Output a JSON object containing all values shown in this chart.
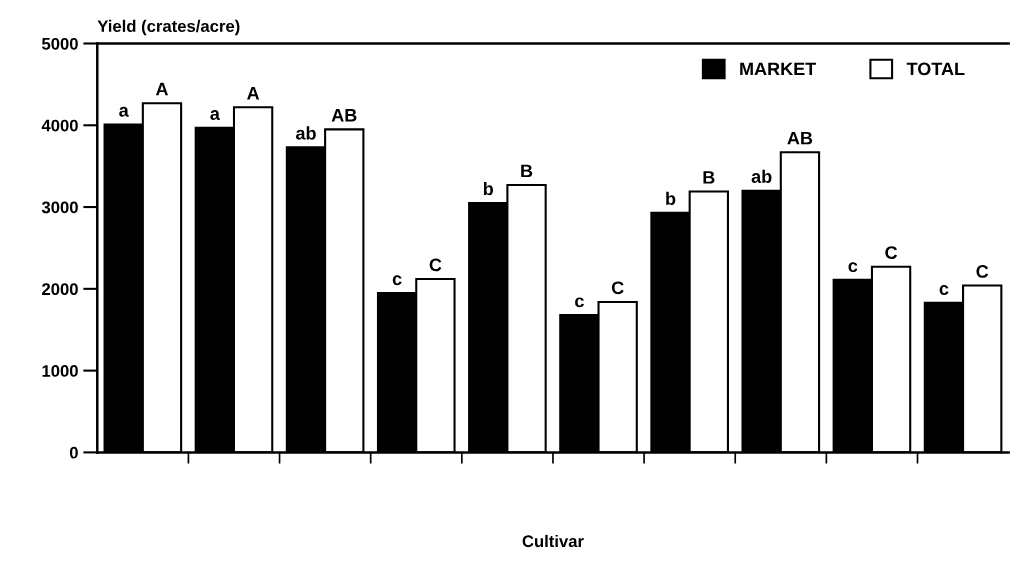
{
  "chart_data": {
    "type": "bar",
    "ylabel": "Yield (crates/acre)",
    "xlabel": "Cultivar",
    "categories": [
      null,
      null,
      null,
      null,
      null,
      null,
      null,
      null,
      null,
      null
    ],
    "series": [
      {
        "name": "MARKET",
        "color": "#000000",
        "values": [
          4010,
          3970,
          3730,
          1950,
          3050,
          1680,
          2930,
          3200,
          2110,
          1830
        ],
        "value_labels": [
          "a",
          "a",
          "ab",
          "c",
          "b",
          "c",
          "b",
          "ab",
          "c",
          "c"
        ]
      },
      {
        "name": "TOTAL",
        "color": "#ffffff",
        "values": [
          4270,
          4220,
          3950,
          2120,
          3270,
          1840,
          3190,
          3670,
          2270,
          2040
        ],
        "value_labels": [
          "A",
          "A",
          "AB",
          "C",
          "B",
          "C",
          "B",
          "AB",
          "C",
          "C"
        ]
      }
    ],
    "ylim": [
      0,
      5000
    ],
    "yticks": [
      0,
      1000,
      2000,
      3000,
      4000,
      5000
    ],
    "grid": false,
    "legend": "top right"
  }
}
